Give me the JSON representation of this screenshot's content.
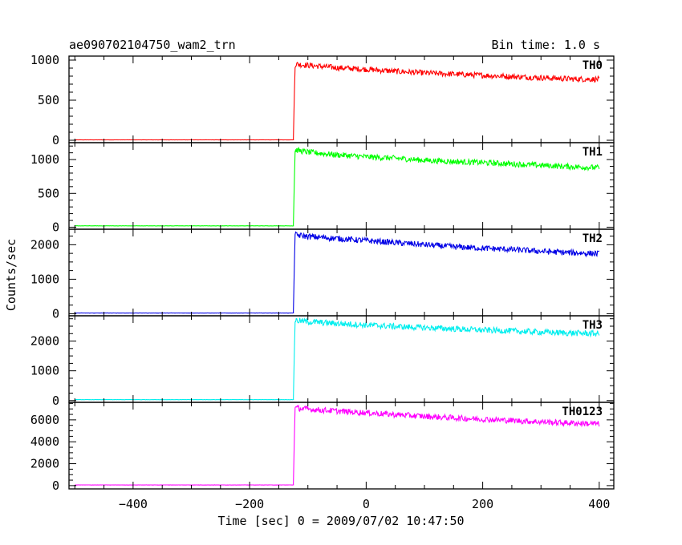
{
  "title_left": "ae090702104750_wam2_trn",
  "title_right": "Bin time: 1.0 s",
  "xlabel": "Time [sec] 0 = 2009/07/02 10:47:50",
  "ylabel": "Counts/sec",
  "chart_data": {
    "type": "line",
    "xlim": [
      -510,
      425
    ],
    "xticks_major": [
      -400,
      -200,
      0,
      200,
      400
    ],
    "x_tick_labels": [
      "−400",
      "−200",
      "0",
      "200",
      "400"
    ],
    "grid": false,
    "legend": "none",
    "panels": [
      {
        "name": "TH0",
        "color": "#ff0000",
        "ylim": [
          -30,
          1050
        ],
        "yticks": [
          0,
          500,
          1000
        ],
        "y_tick_labels": [
          "0",
          "500",
          "1000"
        ],
        "x": [
          -500,
          -125,
          -122,
          -120,
          -100,
          -50,
          0,
          50,
          100,
          150,
          200,
          250,
          300,
          350,
          400
        ],
        "y": [
          5,
          5,
          940,
          950,
          935,
          905,
          885,
          860,
          840,
          825,
          810,
          795,
          780,
          765,
          760
        ]
      },
      {
        "name": "TH1",
        "color": "#00ff00",
        "ylim": [
          -30,
          1250
        ],
        "yticks": [
          0,
          500,
          1000
        ],
        "y_tick_labels": [
          "0",
          "500",
          "1000"
        ],
        "x": [
          -500,
          -125,
          -122,
          -120,
          -100,
          -50,
          0,
          50,
          100,
          150,
          200,
          250,
          300,
          350,
          400
        ],
        "y": [
          20,
          20,
          1120,
          1140,
          1110,
          1070,
          1040,
          1020,
          990,
          970,
          955,
          935,
          915,
          895,
          880
        ]
      },
      {
        "name": "TH2",
        "color": "#0000e6",
        "ylim": [
          -60,
          2450
        ],
        "yticks": [
          0,
          1000,
          2000
        ],
        "y_tick_labels": [
          "0",
          "1000",
          "2000"
        ],
        "x": [
          -500,
          -125,
          -122,
          -120,
          -100,
          -50,
          0,
          50,
          100,
          150,
          200,
          250,
          300,
          350,
          400
        ],
        "y": [
          20,
          20,
          2300,
          2280,
          2240,
          2180,
          2120,
          2060,
          2000,
          1940,
          1900,
          1860,
          1810,
          1770,
          1740
        ]
      },
      {
        "name": "TH3",
        "color": "#00eeee",
        "ylim": [
          -60,
          2850
        ],
        "yticks": [
          0,
          1000,
          2000
        ],
        "y_tick_labels": [
          "0",
          "1000",
          "2000"
        ],
        "x": [
          -500,
          -125,
          -122,
          -120,
          -100,
          -50,
          0,
          50,
          100,
          150,
          200,
          250,
          300,
          350,
          400
        ],
        "y": [
          30,
          30,
          2700,
          2690,
          2650,
          2590,
          2540,
          2490,
          2450,
          2410,
          2370,
          2340,
          2300,
          2270,
          2250
        ]
      },
      {
        "name": "TH0123",
        "color": "#ff00ff",
        "ylim": [
          -300,
          7600
        ],
        "yticks": [
          0,
          2000,
          4000,
          6000
        ],
        "y_tick_labels": [
          "0",
          "2000",
          "4000",
          "6000"
        ],
        "x": [
          -500,
          -125,
          -122,
          -120,
          -100,
          -50,
          0,
          50,
          100,
          150,
          200,
          250,
          300,
          350,
          400
        ],
        "y": [
          60,
          60,
          7100,
          7080,
          6980,
          6800,
          6650,
          6480,
          6320,
          6180,
          6060,
          5940,
          5820,
          5720,
          5630
        ]
      }
    ]
  }
}
